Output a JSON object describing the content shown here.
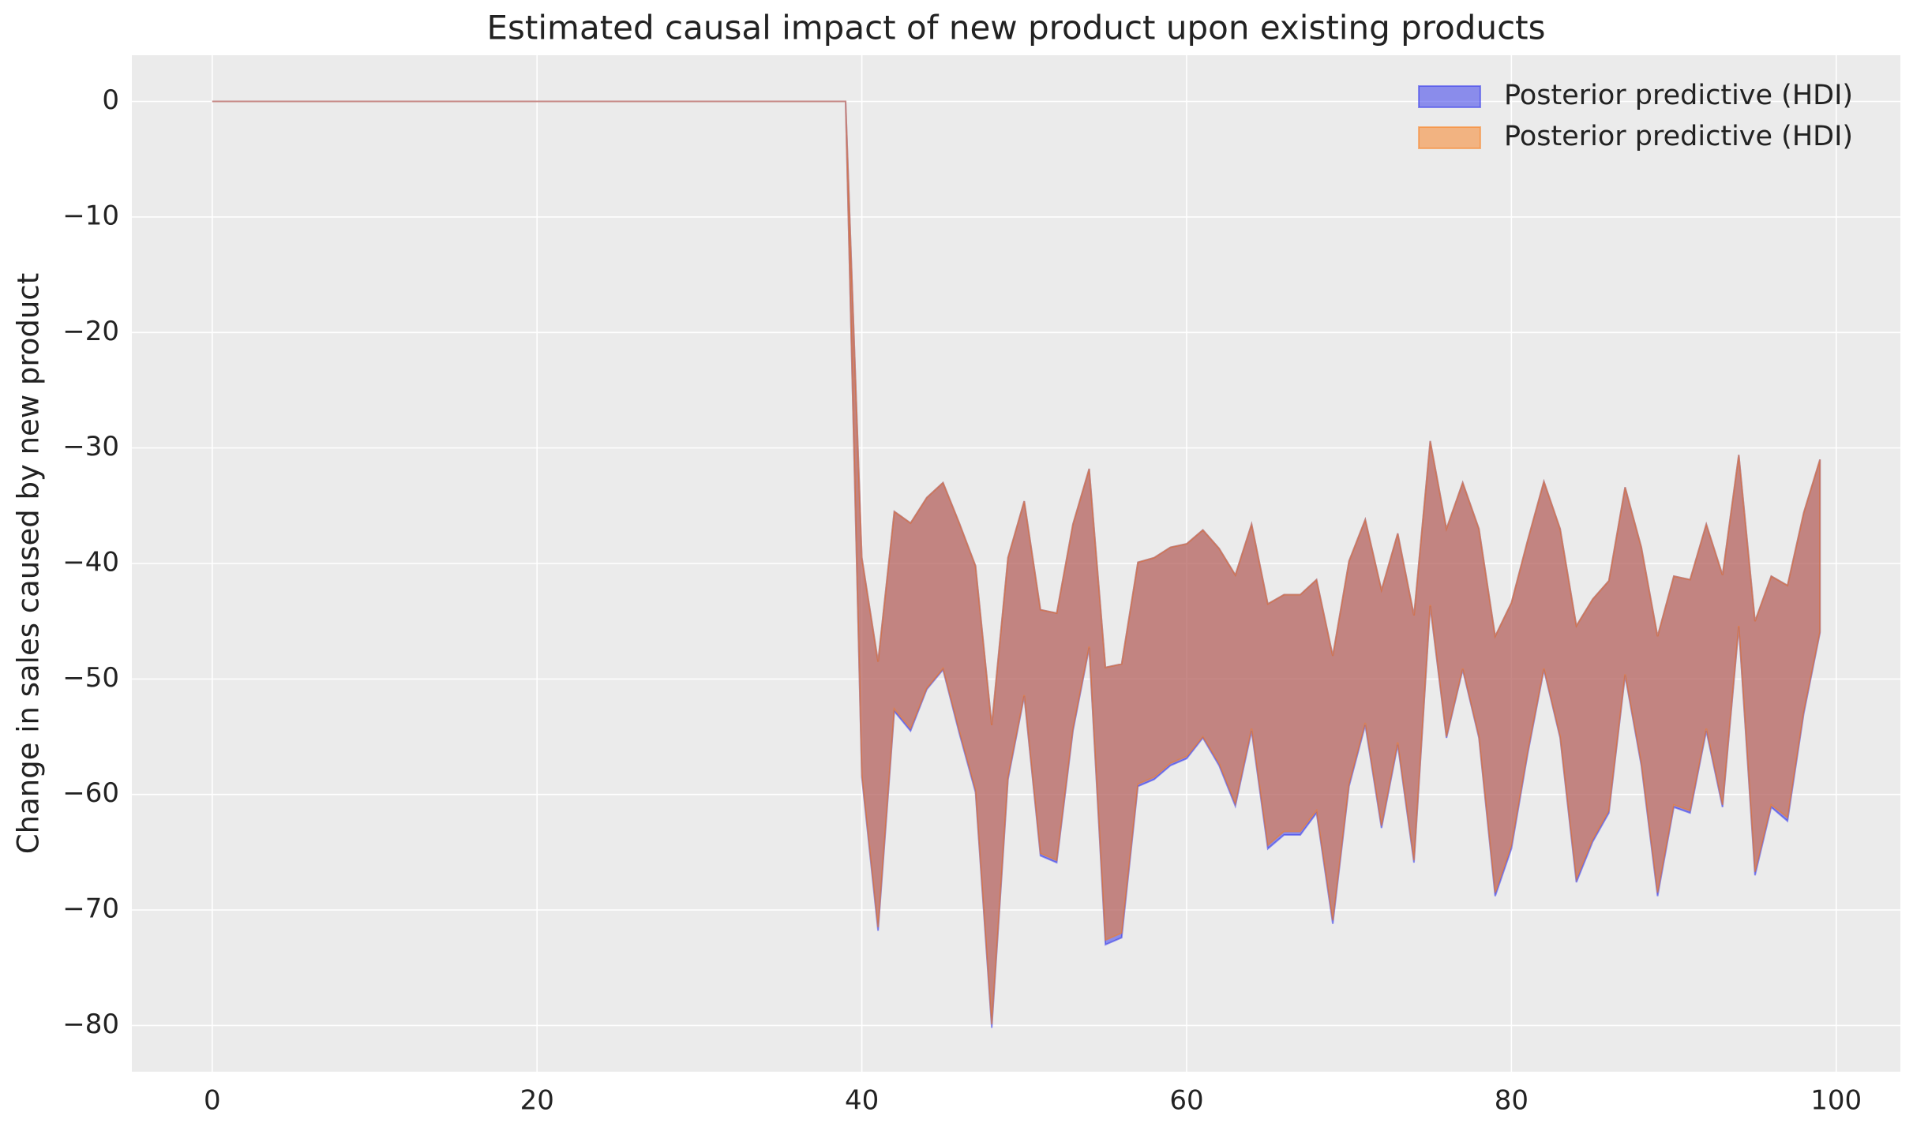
{
  "chart_data": {
    "type": "band",
    "title": "Estimated causal impact of new product upon existing products",
    "y_label": "Change in sales caused by new product",
    "x": [
      0,
      1,
      2,
      3,
      4,
      5,
      6,
      7,
      8,
      9,
      10,
      11,
      12,
      13,
      14,
      15,
      16,
      17,
      18,
      19,
      20,
      21,
      22,
      23,
      24,
      25,
      26,
      27,
      28,
      29,
      30,
      31,
      32,
      33,
      34,
      35,
      36,
      37,
      38,
      39,
      40,
      41,
      42,
      43,
      44,
      45,
      46,
      47,
      48,
      49,
      50,
      51,
      52,
      53,
      54,
      55,
      56,
      57,
      58,
      59,
      60,
      61,
      62,
      63,
      64,
      65,
      66,
      67,
      68,
      69,
      70,
      71,
      72,
      73,
      74,
      75,
      76,
      77,
      78,
      79,
      80,
      81,
      82,
      83,
      84,
      85,
      86,
      87,
      88,
      89,
      90,
      91,
      92,
      93,
      94,
      95,
      96,
      97,
      98,
      99
    ],
    "series": [
      {
        "name": "Posterior predictive (HDI)",
        "color": "#2a2eec",
        "lower": [
          0,
          0,
          0,
          0,
          0,
          0,
          0,
          0,
          0,
          0,
          0,
          0,
          0,
          0,
          0,
          0,
          0,
          0,
          0,
          0,
          0,
          0,
          0,
          0,
          0,
          0,
          0,
          0,
          0,
          0,
          0,
          0,
          0,
          0,
          0,
          0,
          0,
          0,
          0,
          0,
          -58.5,
          -71.8,
          -52.8,
          -54.5,
          -50.9,
          -49.2,
          -54.7,
          -59.8,
          -80.2,
          -58.7,
          -51.5,
          -65.3,
          -65.9,
          -54.5,
          -47.3,
          -73,
          -72.4,
          -59.3,
          -58.7,
          -57.5,
          -56.9,
          -55.1,
          -57.5,
          -61,
          -54.5,
          -64.7,
          -63.5,
          -63.5,
          -61.6,
          -71.2,
          -59.3,
          -54,
          -62.9,
          -55.7,
          -65.9,
          -43.7,
          -55.1,
          -49.2,
          -55.1,
          -68.8,
          -64.7,
          -56.5,
          -49.2,
          -55.1,
          -67.6,
          -64.1,
          -61.6,
          -49.7,
          -57.5,
          -68.8,
          -61.1,
          -61.6,
          -54.5,
          -61.1,
          -45.5,
          -67,
          -61.1,
          -62.3,
          -53,
          -46
        ],
        "upper": [
          0,
          0,
          0,
          0,
          0,
          0,
          0,
          0,
          0,
          0,
          0,
          0,
          0,
          0,
          0,
          0,
          0,
          0,
          0,
          0,
          0,
          0,
          0,
          0,
          0,
          0,
          0,
          0,
          0,
          0,
          0,
          0,
          0,
          0,
          0,
          0,
          0,
          0,
          0,
          0,
          -39.5,
          -48.5,
          -35.5,
          -36.5,
          -34.3,
          -33,
          -36.5,
          -40.2,
          -54,
          -39.5,
          -34.6,
          -44,
          -44.3,
          -36.6,
          -31.8,
          -49,
          -48.7,
          -39.9,
          -39.5,
          -38.6,
          -38.3,
          -37.1,
          -38.7,
          -41,
          -36.6,
          -43.5,
          -42.7,
          -42.7,
          -41.4,
          -48,
          -39.8,
          -36.2,
          -42.3,
          -37.4,
          -44.5,
          -29.4,
          -37,
          -33,
          -37,
          -46.3,
          -43.4,
          -38,
          -32.9,
          -37,
          -45.4,
          -43.1,
          -41.5,
          -33.4,
          -38.6,
          -46.3,
          -41.1,
          -41.4,
          -36.6,
          -41,
          -30.6,
          -45,
          -41.1,
          -41.9,
          -35.6,
          -31
        ]
      },
      {
        "name": "Posterior predictive (HDI)",
        "color": "#fa7c17",
        "lower": [
          0,
          0,
          0,
          0,
          0,
          0,
          0,
          0,
          0,
          0,
          0,
          0,
          0,
          0,
          0,
          0,
          0,
          0,
          0,
          0,
          0,
          0,
          0,
          0,
          0,
          0,
          0,
          0,
          0,
          0,
          0,
          0,
          0,
          0,
          0,
          0,
          0,
          0,
          0,
          0,
          -58.3,
          -71.5,
          -52.6,
          -54.3,
          -50.8,
          -49.1,
          -54.5,
          -59.6,
          -79.9,
          -58.5,
          -51.4,
          -65.1,
          -65.7,
          -54.3,
          -47.2,
          -72.6,
          -72,
          -59.1,
          -58.5,
          -57.3,
          -56.7,
          -55,
          -57.3,
          -60.8,
          -54.3,
          -64.4,
          -63.2,
          -63.2,
          -61.4,
          -70.9,
          -59.1,
          -53.8,
          -62.7,
          -55.5,
          -65.7,
          -43.6,
          -55,
          -49.1,
          -55,
          -68.5,
          -64.4,
          -56.3,
          -49.1,
          -55,
          -67.3,
          -63.9,
          -61.4,
          -49.6,
          -57.3,
          -68.5,
          -60.9,
          -61.4,
          -54.3,
          -60.9,
          -45.4,
          -66.7,
          -60.9,
          -62,
          -52.8,
          -45.9
        ],
        "upper": [
          0,
          0,
          0,
          0,
          0,
          0,
          0,
          0,
          0,
          0,
          0,
          0,
          0,
          0,
          0,
          0,
          0,
          0,
          0,
          0,
          0,
          0,
          0,
          0,
          0,
          0,
          0,
          0,
          0,
          0,
          0,
          0,
          0,
          0,
          0,
          0,
          0,
          0,
          0,
          0,
          -39.5,
          -48.5,
          -35.5,
          -36.5,
          -34.3,
          -33,
          -36.5,
          -40.2,
          -54,
          -39.5,
          -34.6,
          -44,
          -44.3,
          -36.6,
          -31.8,
          -49,
          -48.7,
          -39.9,
          -39.5,
          -38.6,
          -38.3,
          -37.1,
          -38.7,
          -41,
          -36.6,
          -43.5,
          -42.7,
          -42.7,
          -41.4,
          -48,
          -39.8,
          -36.2,
          -42.3,
          -37.4,
          -44.5,
          -29.4,
          -37,
          -33,
          -37,
          -46.3,
          -43.4,
          -38,
          -32.9,
          -37,
          -45.4,
          -43.1,
          -41.5,
          -33.4,
          -38.6,
          -46.3,
          -41.1,
          -41.4,
          -36.6,
          -41,
          -30.6,
          -45,
          -41.1,
          -41.9,
          -35.6,
          -31
        ]
      }
    ],
    "alpha": 0.5,
    "xlim": [
      -4.95,
      103.95
    ],
    "ylim": [
      -84,
      4
    ],
    "xticks": [
      0,
      20,
      40,
      60,
      80,
      100
    ],
    "yticks": [
      {
        "value": -80,
        "label": "−80"
      },
      {
        "value": -70,
        "label": "−70"
      },
      {
        "value": -60,
        "label": "−60"
      },
      {
        "value": -50,
        "label": "−50"
      },
      {
        "value": -40,
        "label": "−40"
      },
      {
        "value": -30,
        "label": "−30"
      },
      {
        "value": -20,
        "label": "−20"
      },
      {
        "value": -10,
        "label": "−10"
      },
      0
    ],
    "grid": true,
    "legend": "upper right"
  }
}
